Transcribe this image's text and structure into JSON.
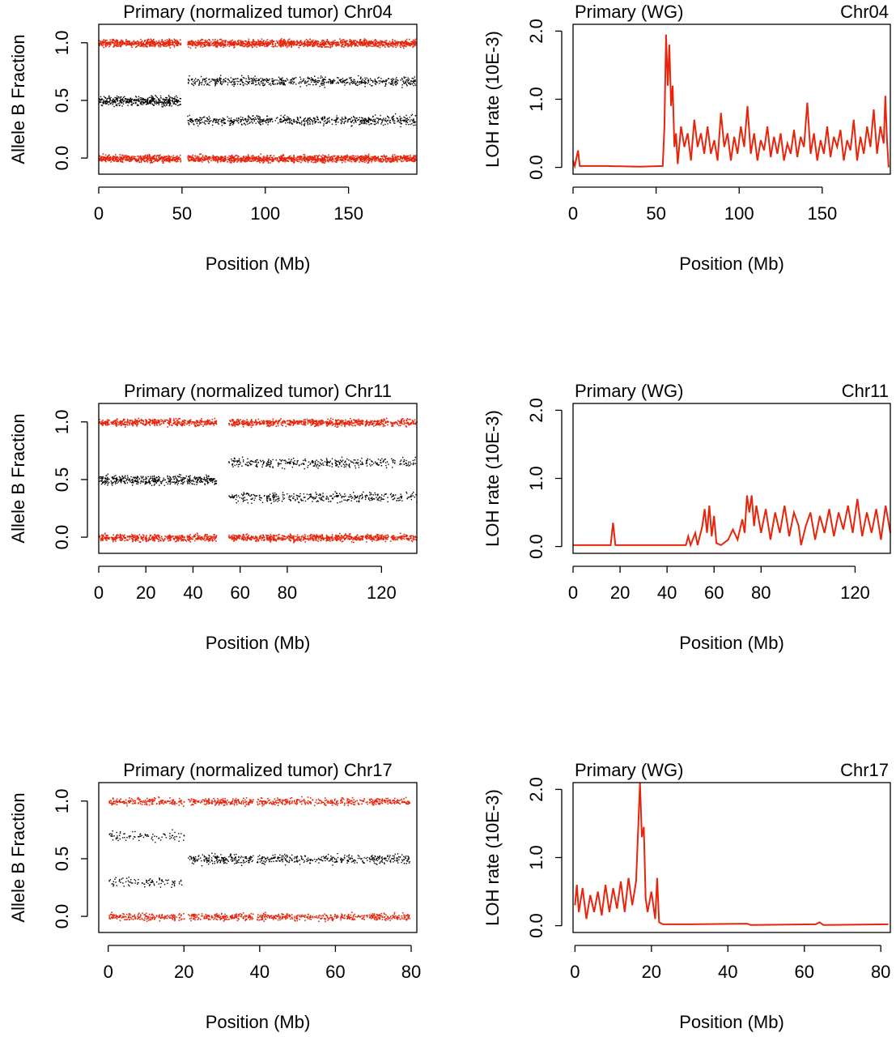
{
  "chart_data": [
    {
      "type": "scatter",
      "title": "Primary (normalized tumor) Chr04",
      "xlabel": "Position (Mb)",
      "ylabel": "Allele B Fraction",
      "xlim": [
        0,
        191
      ],
      "ylim": [
        -0.14,
        1.16
      ],
      "xticks": [
        0,
        50,
        100,
        150
      ],
      "yticks": [
        "0.0",
        "0.5",
        "1.0"
      ],
      "segments": [
        {
          "start": 0,
          "end": 49,
          "het_baf": [
            0.5
          ]
        },
        {
          "start": 53,
          "end": 190,
          "het_baf": [
            0.33,
            0.67
          ]
        }
      ],
      "homozygous_baf": [
        0,
        1
      ],
      "colors": {
        "het": "#000000",
        "hom": "#e8250c"
      }
    },
    {
      "type": "line",
      "title_left": "Primary (WG)",
      "title_right": "Chr04",
      "xlabel": "Position (Mb)",
      "ylabel": "LOH rate (10E-3)",
      "xlim": [
        0,
        191
      ],
      "ylim": [
        -0.1,
        2.1
      ],
      "xticks": [
        0,
        50,
        100,
        150
      ],
      "yticks": [
        "0.0",
        "1.0",
        "2.0"
      ],
      "color": "#e8250c",
      "points": [
        [
          0,
          0.1
        ],
        [
          1,
          0.02
        ],
        [
          3,
          0.25
        ],
        [
          4,
          0.02
        ],
        [
          20,
          0.02
        ],
        [
          40,
          0.01
        ],
        [
          54,
          0.02
        ],
        [
          55,
          0.6
        ],
        [
          56,
          1.95
        ],
        [
          57,
          1.2
        ],
        [
          58,
          1.8
        ],
        [
          59,
          0.9
        ],
        [
          60,
          1.2
        ],
        [
          61,
          0.3
        ],
        [
          62,
          0.5
        ],
        [
          63,
          0.05
        ],
        [
          65,
          0.6
        ],
        [
          67,
          0.3
        ],
        [
          69,
          0.5
        ],
        [
          71,
          0.1
        ],
        [
          73,
          0.7
        ],
        [
          75,
          0.3
        ],
        [
          77,
          0.5
        ],
        [
          79,
          0.2
        ],
        [
          81,
          0.6
        ],
        [
          83,
          0.2
        ],
        [
          85,
          0.4
        ],
        [
          87,
          0.1
        ],
        [
          89,
          0.8
        ],
        [
          91,
          0.3
        ],
        [
          93,
          0.5
        ],
        [
          95,
          0.1
        ],
        [
          97,
          0.45
        ],
        [
          99,
          0.2
        ],
        [
          101,
          0.6
        ],
        [
          103,
          0.3
        ],
        [
          105,
          0.9
        ],
        [
          107,
          0.2
        ],
        [
          109,
          0.5
        ],
        [
          111,
          0.1
        ],
        [
          113,
          0.4
        ],
        [
          115,
          0.25
        ],
        [
          117,
          0.6
        ],
        [
          119,
          0.15
        ],
        [
          121,
          0.45
        ],
        [
          123,
          0.2
        ],
        [
          125,
          0.5
        ],
        [
          127,
          0.1
        ],
        [
          129,
          0.35
        ],
        [
          131,
          0.2
        ],
        [
          133,
          0.55
        ],
        [
          135,
          0.15
        ],
        [
          137,
          0.45
        ],
        [
          139,
          0.3
        ],
        [
          141,
          0.95
        ],
        [
          143,
          0.2
        ],
        [
          145,
          0.5
        ],
        [
          147,
          0.1
        ],
        [
          149,
          0.4
        ],
        [
          151,
          0.2
        ],
        [
          153,
          0.6
        ],
        [
          155,
          0.15
        ],
        [
          157,
          0.45
        ],
        [
          159,
          0.3
        ],
        [
          161,
          0.55
        ],
        [
          163,
          0.1
        ],
        [
          165,
          0.4
        ],
        [
          167,
          0.25
        ],
        [
          169,
          0.7
        ],
        [
          171,
          0.1
        ],
        [
          173,
          0.45
        ],
        [
          175,
          0.2
        ],
        [
          177,
          0.6
        ],
        [
          179,
          0.3
        ],
        [
          181,
          0.85
        ],
        [
          183,
          0.2
        ],
        [
          185,
          0.6
        ],
        [
          187,
          0.35
        ],
        [
          188,
          1.05
        ],
        [
          189,
          0.4
        ],
        [
          190,
          0.0
        ]
      ]
    },
    {
      "type": "scatter",
      "title": "Primary (normalized tumor) Chr11",
      "xlabel": "Position (Mb)",
      "ylabel": "Allele B Fraction",
      "xlim": [
        0,
        135
      ],
      "ylim": [
        -0.14,
        1.16
      ],
      "xticks": [
        0,
        20,
        40,
        60,
        80,
        120
      ],
      "yticks": [
        "0.0",
        "0.5",
        "1.0"
      ],
      "segments": [
        {
          "start": 0,
          "end": 50,
          "het_baf": [
            0.5
          ]
        },
        {
          "start": 55,
          "end": 135,
          "het_baf": [
            0.35,
            0.65
          ]
        }
      ],
      "homozygous_baf": [
        0,
        1
      ],
      "colors": {
        "het": "#000000",
        "hom": "#e8250c"
      }
    },
    {
      "type": "line",
      "title_left": "Primary (WG)",
      "title_right": "Chr11",
      "xlabel": "Position (Mb)",
      "ylabel": "LOH rate (10E-3)",
      "xlim": [
        0,
        135
      ],
      "ylim": [
        -0.1,
        2.1
      ],
      "xticks": [
        0,
        20,
        40,
        60,
        80,
        120
      ],
      "yticks": [
        "0.0",
        "1.0",
        "2.0"
      ],
      "color": "#e8250c",
      "points": [
        [
          0,
          0.02
        ],
        [
          16,
          0.02
        ],
        [
          17,
          0.35
        ],
        [
          18,
          0.02
        ],
        [
          48,
          0.02
        ],
        [
          49,
          0.15
        ],
        [
          50,
          0.02
        ],
        [
          52,
          0.2
        ],
        [
          53,
          0.02
        ],
        [
          55,
          0.3
        ],
        [
          56,
          0.55
        ],
        [
          57,
          0.2
        ],
        [
          58,
          0.6
        ],
        [
          59,
          0.15
        ],
        [
          60,
          0.45
        ],
        [
          61,
          0.05
        ],
        [
          63,
          0.02
        ],
        [
          66,
          0.1
        ],
        [
          68,
          0.25
        ],
        [
          70,
          0.1
        ],
        [
          72,
          0.4
        ],
        [
          73,
          0.2
        ],
        [
          74,
          0.75
        ],
        [
          75,
          0.5
        ],
        [
          76,
          0.75
        ],
        [
          77,
          0.3
        ],
        [
          78,
          0.6
        ],
        [
          80,
          0.2
        ],
        [
          82,
          0.55
        ],
        [
          84,
          0.1
        ],
        [
          86,
          0.5
        ],
        [
          88,
          0.2
        ],
        [
          90,
          0.6
        ],
        [
          92,
          0.15
        ],
        [
          94,
          0.5
        ],
        [
          96,
          0.3
        ],
        [
          97,
          0.02
        ],
        [
          99,
          0.3
        ],
        [
          101,
          0.5
        ],
        [
          103,
          0.1
        ],
        [
          105,
          0.45
        ],
        [
          107,
          0.2
        ],
        [
          109,
          0.55
        ],
        [
          111,
          0.15
        ],
        [
          113,
          0.5
        ],
        [
          115,
          0.25
        ],
        [
          117,
          0.6
        ],
        [
          119,
          0.2
        ],
        [
          121,
          0.7
        ],
        [
          123,
          0.15
        ],
        [
          125,
          0.5
        ],
        [
          127,
          0.2
        ],
        [
          129,
          0.55
        ],
        [
          131,
          0.1
        ],
        [
          133,
          0.6
        ],
        [
          135,
          0.2
        ]
      ]
    },
    {
      "type": "scatter",
      "title": "Primary (normalized tumor) Chr17",
      "xlabel": "Position (Mb)",
      "ylabel": "Allele B Fraction",
      "xlim": [
        -2.5,
        81.5
      ],
      "ylim": [
        -0.14,
        1.16
      ],
      "xticks": [
        0,
        20,
        40,
        60,
        80
      ],
      "yticks": [
        "0.0",
        "0.5",
        "1.0"
      ],
      "segments": [
        {
          "start": 0,
          "end": 20,
          "het_baf": [
            0.3,
            0.7
          ]
        },
        {
          "start": 21,
          "end": 80,
          "het_baf": [
            0.5
          ]
        }
      ],
      "homozygous_baf": [
        0,
        1
      ],
      "colors": {
        "het": "#000000",
        "hom": "#e8250c"
      }
    },
    {
      "type": "line",
      "title_left": "Primary (WG)",
      "title_right": "Chr17",
      "xlabel": "Position (Mb)",
      "ylabel": "LOH rate (10E-3)",
      "xlim": [
        -0.5,
        82.5
      ],
      "ylim": [
        -0.1,
        2.1
      ],
      "xticks": [
        0,
        20,
        40,
        60,
        80
      ],
      "yticks": [
        "0.0",
        "1.0",
        "2.0"
      ],
      "color": "#e8250c",
      "points": [
        [
          0,
          0.3
        ],
        [
          0.5,
          0.6
        ],
        [
          1,
          0.2
        ],
        [
          2,
          0.55
        ],
        [
          3,
          0.1
        ],
        [
          4,
          0.45
        ],
        [
          5,
          0.2
        ],
        [
          6,
          0.5
        ],
        [
          7,
          0.15
        ],
        [
          8,
          0.6
        ],
        [
          9,
          0.2
        ],
        [
          10,
          0.55
        ],
        [
          11,
          0.25
        ],
        [
          12,
          0.65
        ],
        [
          13,
          0.2
        ],
        [
          14,
          0.7
        ],
        [
          15,
          0.3
        ],
        [
          16,
          0.65
        ],
        [
          17,
          2.1
        ],
        [
          17.5,
          1.3
        ],
        [
          18,
          1.45
        ],
        [
          18.5,
          0.4
        ],
        [
          19,
          0.2
        ],
        [
          20,
          0.5
        ],
        [
          21,
          0.1
        ],
        [
          21.5,
          0.7
        ],
        [
          22,
          0.05
        ],
        [
          23,
          0.02
        ],
        [
          30,
          0.02
        ],
        [
          45,
          0.03
        ],
        [
          46,
          0.01
        ],
        [
          63,
          0.02
        ],
        [
          64,
          0.05
        ],
        [
          65,
          0.01
        ],
        [
          82,
          0.02
        ]
      ]
    }
  ]
}
